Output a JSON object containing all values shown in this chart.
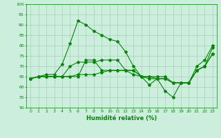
{
  "xlabel": "Humidité relative (%)",
  "bg_color": "#cceedd",
  "grid_color": "#aaccbb",
  "line_color": "#008800",
  "xlim": [
    -0.5,
    23.5
  ],
  "ylim": [
    50,
    100
  ],
  "yticks": [
    50,
    55,
    60,
    65,
    70,
    75,
    80,
    85,
    90,
    95,
    100
  ],
  "xticks": [
    0,
    1,
    2,
    3,
    4,
    5,
    6,
    7,
    8,
    9,
    10,
    11,
    12,
    13,
    14,
    15,
    16,
    17,
    18,
    19,
    20,
    21,
    22,
    23
  ],
  "line1": [
    64,
    65,
    66,
    66,
    71,
    81,
    92,
    90,
    87,
    85,
    83,
    82,
    77,
    70,
    65,
    61,
    64,
    58,
    55,
    62,
    62,
    70,
    73,
    80
  ],
  "line2": [
    64,
    65,
    65,
    65,
    65,
    70,
    72,
    72,
    72,
    73,
    73,
    73,
    68,
    68,
    65,
    65,
    65,
    65,
    62,
    62,
    62,
    68,
    70,
    76
  ],
  "line3": [
    64,
    65,
    65,
    65,
    65,
    65,
    65,
    73,
    73,
    68,
    68,
    68,
    68,
    68,
    65,
    65,
    64,
    64,
    62,
    62,
    62,
    68,
    70,
    76
  ],
  "line4": [
    64,
    65,
    65,
    65,
    65,
    65,
    66,
    66,
    66,
    67,
    68,
    68,
    68,
    66,
    65,
    64,
    64,
    64,
    62,
    62,
    62,
    68,
    70,
    79
  ]
}
